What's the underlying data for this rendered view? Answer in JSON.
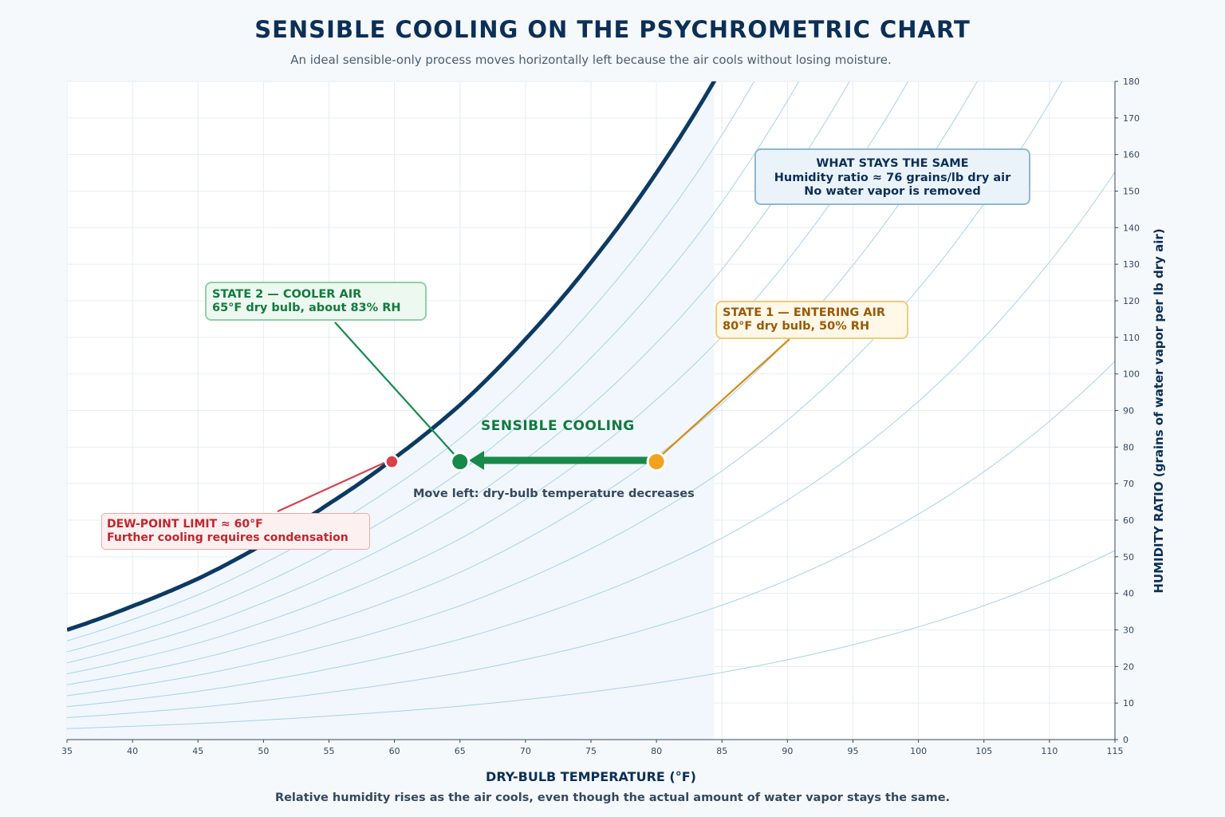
{
  "header": {
    "title": "SENSIBLE COOLING ON THE PSYCHROMETRIC CHART",
    "subtitle": "An ideal sensible-only process moves horizontally left because the air cools without losing moisture."
  },
  "footer": {
    "note": "Relative humidity rises as the air cools, even though the actual amount of water vapor stays the same."
  },
  "chart_data": {
    "type": "line",
    "xlabel": "DRY-BULB TEMPERATURE (°F)",
    "ylabel": "HUMIDITY RATIO (grains of water vapor per lb dry air)",
    "xlim": [
      35,
      115
    ],
    "ylim": [
      0,
      180
    ],
    "xticks": [
      35,
      40,
      45,
      50,
      55,
      60,
      65,
      70,
      75,
      80,
      85,
      90,
      95,
      100,
      105,
      110,
      115
    ],
    "yticks": [
      0,
      10,
      20,
      30,
      40,
      50,
      60,
      70,
      80,
      90,
      100,
      110,
      120,
      130,
      140,
      150,
      160,
      170,
      180
    ],
    "y_axis_side": "right",
    "grid": true,
    "saturation_curve": {
      "x": [
        35,
        40,
        45,
        50,
        55,
        60,
        65,
        70,
        75,
        80,
        84.4
      ],
      "y": [
        30,
        36.5,
        44,
        53.5,
        64.5,
        77,
        91.5,
        109.5,
        130.5,
        155,
        180
      ]
    },
    "rh_curves_percent": [
      10,
      20,
      30,
      40,
      50,
      60,
      70,
      80,
      90
    ],
    "process": {
      "state1": {
        "dry_bulb": 80,
        "humidity_ratio": 76,
        "rh_percent": 50
      },
      "state2": {
        "dry_bulb": 65,
        "humidity_ratio": 76,
        "rh_percent": 83
      },
      "dew_point": {
        "dry_bulb": 59.8,
        "humidity_ratio": 76
      }
    },
    "colors": {
      "saturation": "#0c3a63",
      "rh_lines": "#a9d2e6",
      "process_arrow": "#178a4a",
      "state1": "#f2a21e",
      "state2": "#178a4a",
      "dew_point": "#d9414a"
    }
  },
  "annotations": {
    "same_line1": "WHAT STAYS THE SAME",
    "same_line2": "Humidity ratio ≈ 76 grains/lb dry air",
    "same_line3": "No water vapor is removed",
    "state2_line1": "STATE 2 — COOLER AIR",
    "state2_line2": "65°F dry bulb, about 83% RH",
    "state1_line1": "STATE 1 — ENTERING AIR",
    "state1_line2": "80°F dry bulb, 50% RH",
    "dew_line1": "DEW-POINT LIMIT ≈ 60°F",
    "dew_line2": "Further cooling requires condensation",
    "sensible": "SENSIBLE COOLING",
    "move": "Move left: dry-bulb temperature decreases"
  }
}
